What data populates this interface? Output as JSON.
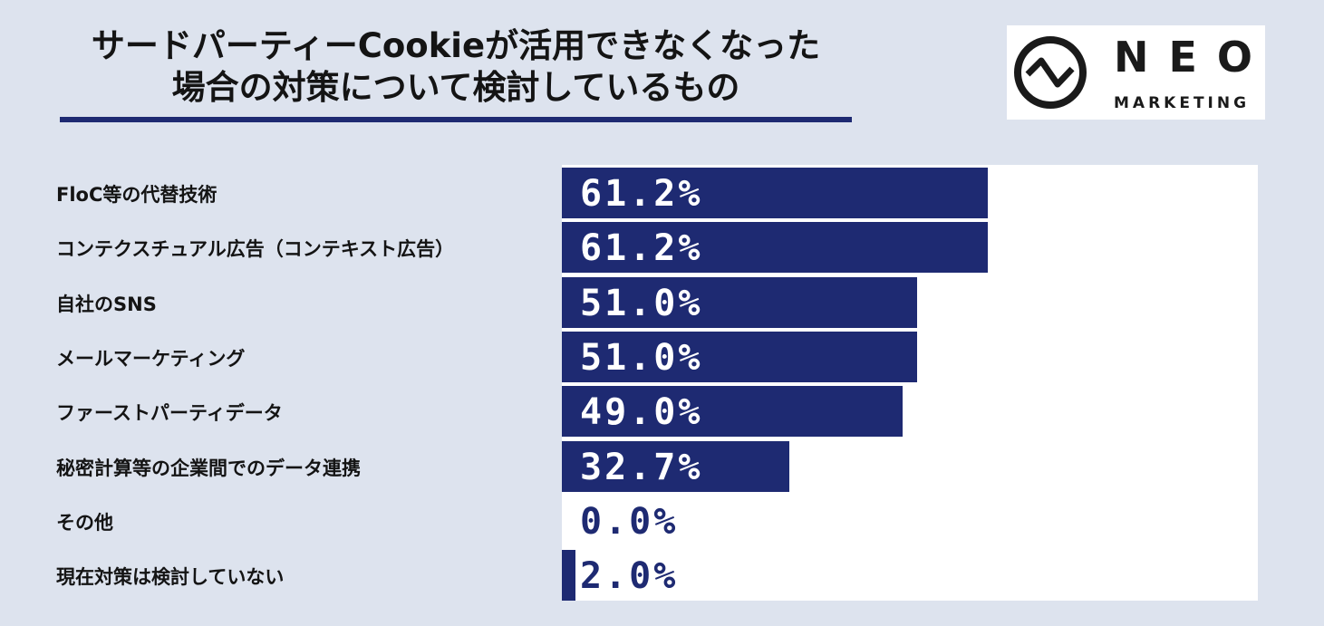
{
  "title_line1": "サードパーティーCookieが活用できなくなった",
  "title_line2": "場合の対策について検討しているもの",
  "logo": {
    "name": "NEO",
    "sub": "MARKETING"
  },
  "colors": {
    "bar": "#1e2a72",
    "background": "#dde3ee",
    "plot": "#ffffff"
  },
  "chart_data": {
    "type": "bar",
    "orientation": "horizontal",
    "categories": [
      "FloC等の代替技術",
      "コンテクスチュアル広告（コンテキスト広告）",
      "自社のSNS",
      "メールマーケティング",
      "ファーストパーティデータ",
      "秘密計算等の企業間でのデータ連携",
      "その他",
      "現在対策は検討していない"
    ],
    "values": [
      61.2,
      61.2,
      51.0,
      51.0,
      49.0,
      32.7,
      0.0,
      2.0
    ],
    "value_labels": [
      "61.2%",
      "61.2%",
      "51.0%",
      "51.0%",
      "49.0%",
      "32.7%",
      "0.0%",
      "2.0%"
    ],
    "unit": "%"
  }
}
